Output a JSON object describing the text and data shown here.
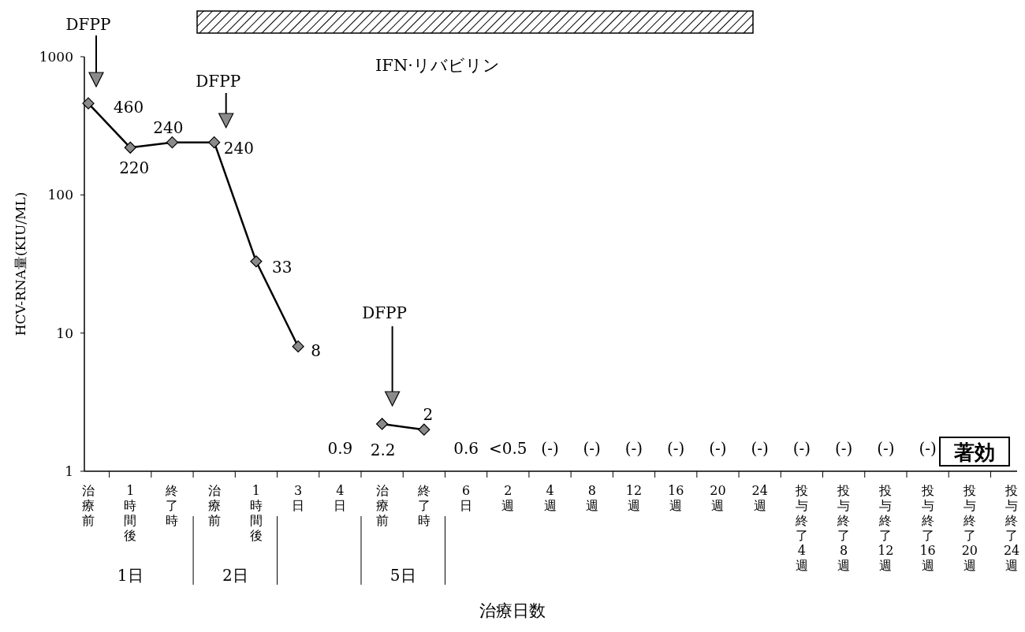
{
  "chart_data": {
    "type": "line",
    "categories": [
      "治療前",
      "1時間後",
      "終了時",
      "治療前",
      "1時間後",
      "3日",
      "4日",
      "治療前",
      "終了時",
      "6日",
      "2週",
      "4週",
      "8週",
      "12週",
      "16週",
      "20週",
      "24週",
      "投与終了4週",
      "投与終了8週",
      "投与終了12週",
      "投与終了16週",
      "投与終了20週",
      "投与終了24週"
    ],
    "series": [
      {
        "color": "#000000",
        "values": [
          460,
          220,
          240,
          240,
          33,
          8,
          null,
          2.2,
          2,
          null,
          null,
          null,
          null,
          null,
          null,
          null,
          null,
          null,
          null,
          null,
          null,
          null,
          null
        ],
        "value_labels": [
          "460",
          "220",
          "240",
          "240",
          "33",
          "8",
          "0.9",
          "2.2",
          "2",
          "0.6",
          "<0.5",
          "(-)",
          "(-)",
          "(-)",
          "(-)",
          "(-)",
          "(-)",
          "(-)",
          "(-)",
          "(-)",
          "(-)",
          null,
          null
        ]
      }
    ],
    "ylim": [
      1,
      1000
    ],
    "yticks": [
      1,
      10,
      100,
      1000
    ],
    "log": true,
    "marker": "diamond",
    "xlabel": "治療日数",
    "ylabel": "HCV-RNA量(KIU/ML)",
    "annotations": [
      "IFN·リバビリン",
      "DFPP",
      "DFPP",
      "DFPP",
      "1日",
      "2日",
      "5日",
      "著効"
    ]
  }
}
